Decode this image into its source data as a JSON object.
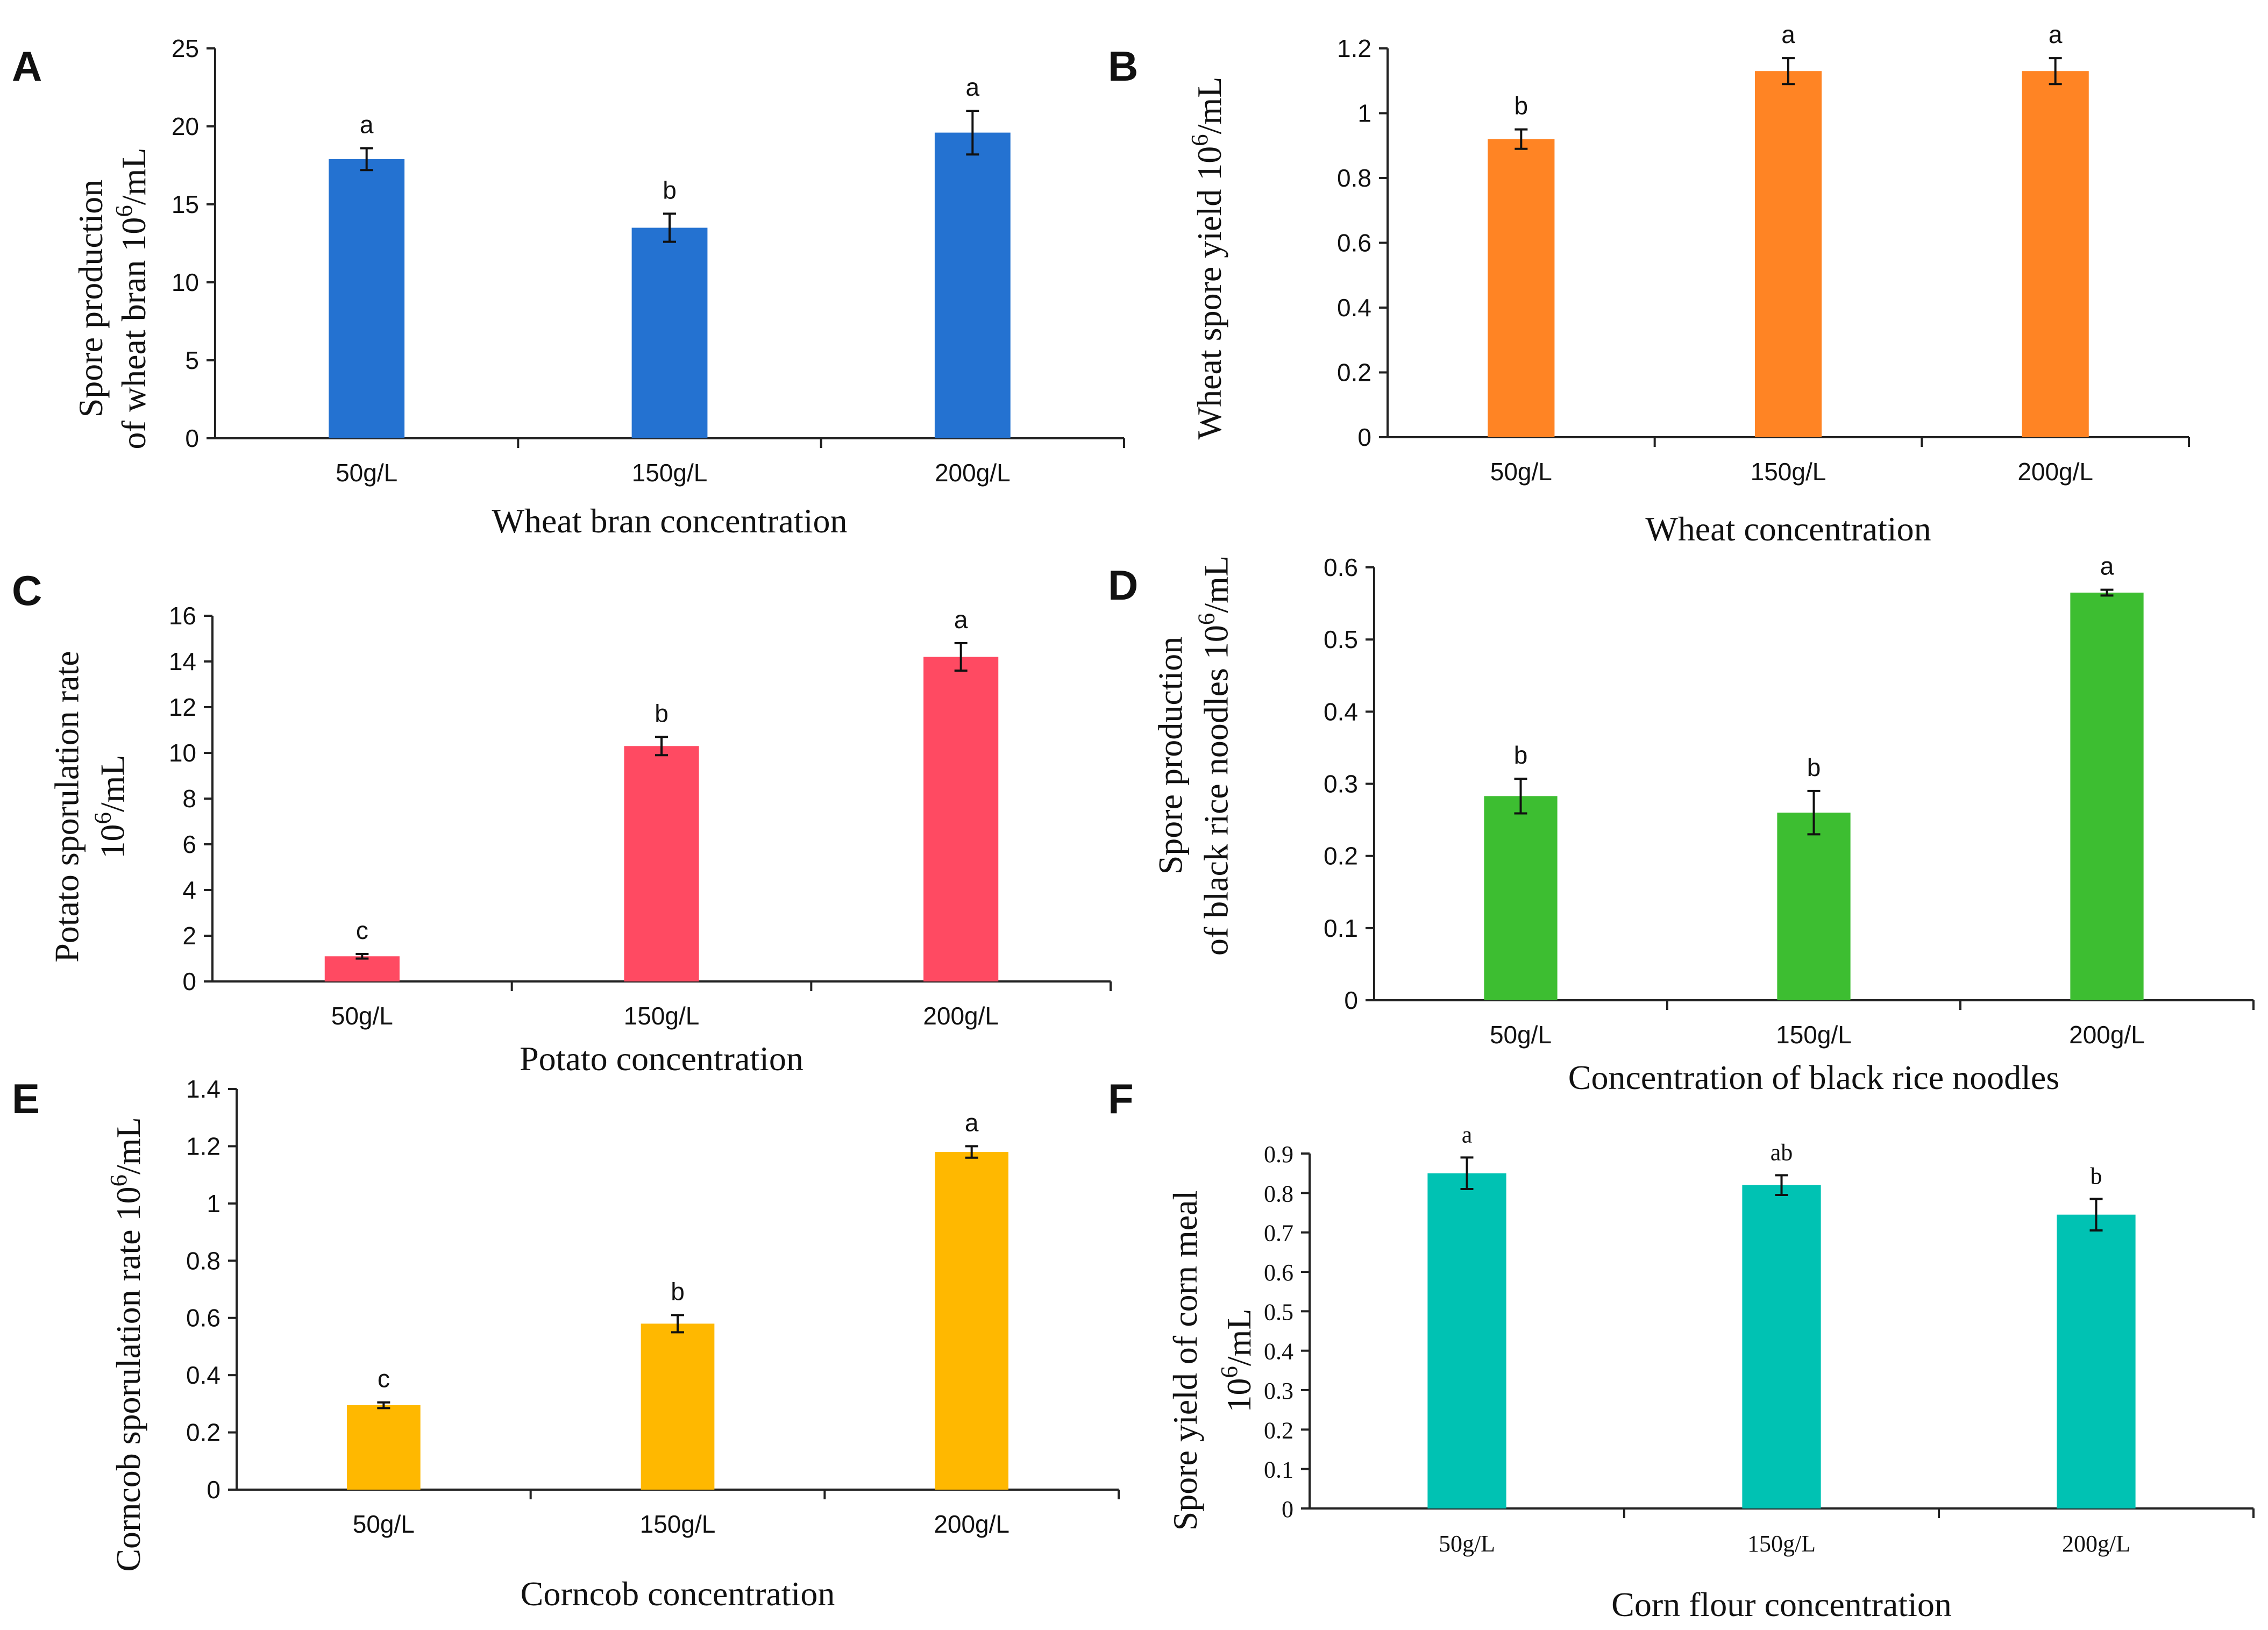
{
  "chart_data": [
    {
      "panel": "A",
      "type": "bar",
      "categories": [
        "50g/L",
        "150g/L",
        "200g/L"
      ],
      "values": [
        17.9,
        13.5,
        19.6
      ],
      "errors": [
        0.7,
        0.9,
        1.4
      ],
      "significance": [
        "a",
        "b",
        "a"
      ],
      "ylim": [
        0,
        25
      ],
      "yticks": [
        "0",
        "5",
        "10",
        "15",
        "20",
        "25"
      ],
      "ylabel_lines": [
        "Spore production",
        "of wheat bran 10^6/mL"
      ],
      "xlabel": "Wheat bran concentration",
      "color": "#2472D1",
      "tick_font": "sans"
    },
    {
      "panel": "B",
      "type": "bar",
      "categories": [
        "50g/L",
        "150g/L",
        "200g/L"
      ],
      "values": [
        0.92,
        1.13,
        1.13
      ],
      "errors": [
        0.03,
        0.04,
        0.04
      ],
      "significance": [
        "b",
        "a",
        "a"
      ],
      "ylim": [
        0,
        1.2
      ],
      "yticks": [
        "0",
        "0.2",
        "0.4",
        "0.6",
        "0.8",
        "1",
        "1.2"
      ],
      "ylabel_lines": [
        "Wheat spore yield 10^6/mL"
      ],
      "xlabel": "Wheat concentration",
      "color": "#FF8424",
      "tick_font": "sans"
    },
    {
      "panel": "C",
      "type": "bar",
      "categories": [
        "50g/L",
        "150g/L",
        "200g/L"
      ],
      "values": [
        1.1,
        10.3,
        14.2
      ],
      "errors": [
        0.1,
        0.4,
        0.6
      ],
      "significance": [
        "c",
        "b",
        "a"
      ],
      "ylim": [
        0,
        16
      ],
      "yticks": [
        "0",
        "2",
        "4",
        "6",
        "8",
        "10",
        "12",
        "14",
        "16"
      ],
      "ylabel_lines": [
        "Potato sporulation rate",
        "10^6/mL"
      ],
      "xlabel": "Potato concentration",
      "color": "#FF4A62",
      "tick_font": "sans"
    },
    {
      "panel": "D",
      "type": "bar",
      "categories": [
        "50g/L",
        "150g/L",
        "200g/L"
      ],
      "values": [
        0.283,
        0.26,
        0.565
      ],
      "errors": [
        0.024,
        0.03,
        0.004
      ],
      "significance": [
        "b",
        "b",
        "a"
      ],
      "ylim": [
        0,
        0.6
      ],
      "yticks": [
        "0",
        "0.1",
        "0.2",
        "0.3",
        "0.4",
        "0.5",
        "0.6"
      ],
      "ylabel_lines": [
        "Spore production",
        "of black rice noodles 10^6/mL"
      ],
      "xlabel": "Concentration of black rice noodles",
      "color": "#3DBE31",
      "tick_font": "sans"
    },
    {
      "panel": "E",
      "type": "bar",
      "categories": [
        "50g/L",
        "150g/L",
        "200g/L"
      ],
      "values": [
        0.295,
        0.58,
        1.18
      ],
      "errors": [
        0.01,
        0.03,
        0.02
      ],
      "significance": [
        "c",
        "b",
        "a"
      ],
      "ylim": [
        0,
        1.4
      ],
      "yticks": [
        "0",
        "0.2",
        "0.4",
        "0.6",
        "0.8",
        "1",
        "1.2",
        "1.4"
      ],
      "ylabel_lines": [
        "Corncob sporulation rate 10^6/mL"
      ],
      "xlabel": "Corncob concentration",
      "color": "#FFB800",
      "tick_font": "sans"
    },
    {
      "panel": "F",
      "type": "bar",
      "categories": [
        "50g/L",
        "150g/L",
        "200g/L"
      ],
      "values": [
        0.85,
        0.82,
        0.745
      ],
      "errors": [
        0.04,
        0.025,
        0.04
      ],
      "significance": [
        "a",
        "ab",
        "b"
      ],
      "ylim": [
        0,
        0.9
      ],
      "yticks": [
        "0",
        "0.1",
        "0.2",
        "0.3",
        "0.4",
        "0.5",
        "0.6",
        "0.7",
        "0.8",
        "0.9"
      ],
      "ylabel_lines": [
        "Spore yield of corn meal",
        "10^6/mL"
      ],
      "xlabel": "Corn flour concentration",
      "color": "#00C2B3",
      "tick_font": "serif"
    }
  ]
}
